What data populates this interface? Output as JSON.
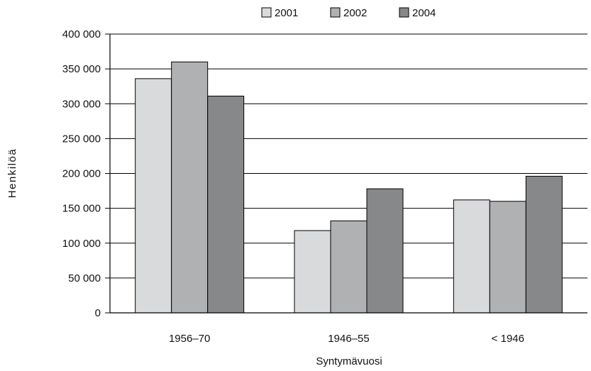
{
  "chart_data": {
    "type": "bar",
    "title": "",
    "xlabel": "Syntymävuosi",
    "ylabel": "Henkilöä",
    "categories": [
      "1956–70",
      "1946–55",
      "< 1946"
    ],
    "series": [
      {
        "name": "2001",
        "values": [
          336000,
          118000,
          162000
        ],
        "color": "#d9dadc"
      },
      {
        "name": "2002",
        "values": [
          360000,
          132000,
          160000
        ],
        "color": "#b0b1b3"
      },
      {
        "name": "2004",
        "values": [
          311000,
          178000,
          196000
        ],
        "color": "#86888a"
      }
    ],
    "ylim": [
      0,
      400000
    ],
    "yticks": [
      0,
      50000,
      100000,
      150000,
      200000,
      250000,
      300000,
      350000,
      400000
    ],
    "ytick_labels": [
      "0",
      "50 000",
      "100 000",
      "150 000",
      "200 000",
      "250 000",
      "300 000",
      "350 000",
      "400 000"
    ],
    "grid": "horizontal",
    "legend_position": "top"
  }
}
